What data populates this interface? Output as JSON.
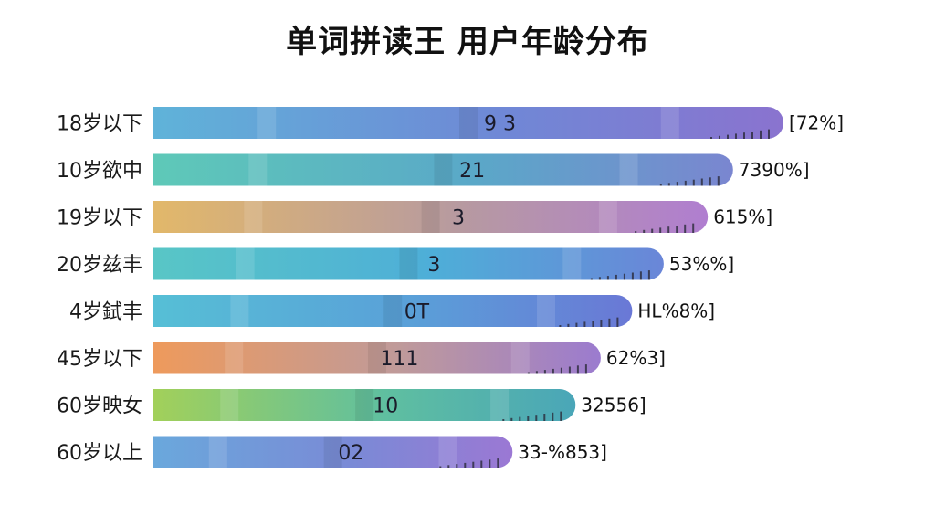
{
  "title": "单词拼读王 用户年龄分布",
  "colors": {
    "row_gradients": [
      [
        "#5fb3d9",
        "#6f88d6",
        "#8a73cf"
      ],
      [
        "#5ec9b8",
        "#5aa8c8",
        "#7a86d0"
      ],
      [
        "#e2b86a",
        "#b79aa0",
        "#b07ed0"
      ],
      [
        "#58c6c6",
        "#4eaed8",
        "#6a86d8"
      ],
      [
        "#56bfd6",
        "#5a9fd8",
        "#6a78d6"
      ],
      [
        "#ee9a5c",
        "#bf9a9a",
        "#9b7bcf"
      ],
      [
        "#a2d05a",
        "#5fbfa0",
        "#4aa6b8"
      ],
      [
        "#6aa8dc",
        "#7a8ad6",
        "#9b78d4"
      ]
    ]
  },
  "chart_data": {
    "type": "bar",
    "orientation": "horizontal",
    "title": "单词拼读王 用户年龄分布",
    "categories": [
      "18岁以下",
      "10岁欲中",
      "19岁以下",
      "20岁兹丰",
      "4岁鉽丰",
      "45岁以下",
      "60岁映女",
      "60岁以上"
    ],
    "values": [
      100,
      92,
      88,
      81,
      76,
      71,
      67,
      57
    ],
    "bar_labels": [
      "9 3",
      "21",
      "3",
      "3",
      "0T",
      "111",
      "10",
      "02"
    ],
    "value_labels": [
      "[72%]",
      "7390%]",
      "615%]",
      "53%%]",
      "HL%8%]",
      "62%3]",
      "32556]",
      "33-%853]"
    ],
    "xlim": [
      0,
      100
    ],
    "grid": false,
    "legend": "none"
  }
}
